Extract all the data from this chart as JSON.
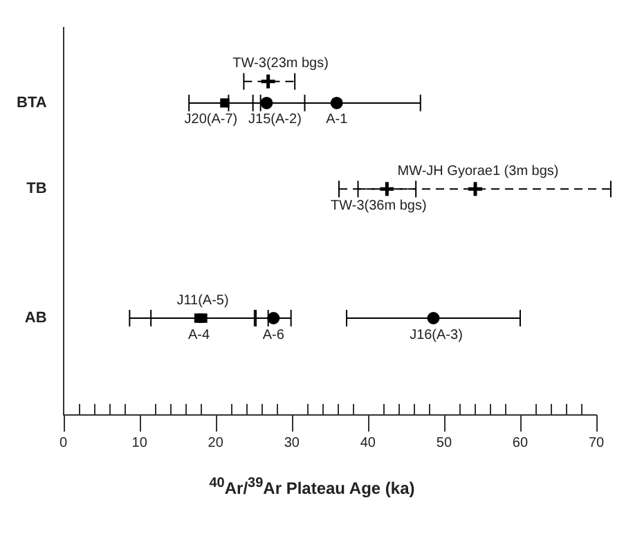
{
  "chart_data": {
    "type": "scatter",
    "orientation": "horizontal",
    "xlabel": "$^{40}$Ar/$^{39}$Ar Plateau Age (ka)",
    "categories": [
      null,
      null,
      null,
      "BTA",
      null,
      null,
      null,
      "TB",
      null,
      null,
      null,
      null,
      null,
      "AB",
      null,
      null,
      null,
      null
    ],
    "xlim": [
      0,
      70
    ],
    "xticks": [
      0,
      {
        "value": 2,
        "label": null
      },
      {
        "value": 4,
        "label": null
      },
      {
        "value": 6,
        "label": null
      },
      {
        "value": 8,
        "label": null
      },
      10,
      {
        "value": 12,
        "label": null
      },
      {
        "value": 14,
        "label": null
      },
      {
        "value": 16,
        "label": null
      },
      {
        "value": 18,
        "label": null
      },
      20,
      {
        "value": 22,
        "label": null
      },
      {
        "value": 24,
        "label": null
      },
      {
        "value": 26,
        "label": null
      },
      {
        "value": 28,
        "label": null
      },
      30,
      {
        "value": 32,
        "label": null
      },
      {
        "value": 34,
        "label": null
      },
      {
        "value": 36,
        "label": null
      },
      {
        "value": 38,
        "label": null
      },
      40,
      {
        "value": 42,
        "label": null
      },
      {
        "value": 44,
        "label": null
      },
      {
        "value": 46,
        "label": null
      },
      {
        "value": 48,
        "label": null
      },
      50,
      {
        "value": 52,
        "label": null
      },
      {
        "value": 54,
        "label": null
      },
      {
        "value": 56,
        "label": null
      },
      {
        "value": 58,
        "label": null
      },
      60,
      {
        "value": 62,
        "label": null
      },
      {
        "value": 64,
        "label": null
      },
      {
        "value": 66,
        "label": null
      },
      {
        "value": 68,
        "label": null
      },
      70
    ],
    "grid": false,
    "legend": false,
    "series": [
      {
        "name": "J20(A-7)",
        "color": "#000000",
        "marker": "square",
        "line_style": "solid",
        "values": [
          null,
          null,
          null,
          21.2,
          null,
          null,
          null,
          null,
          null,
          null,
          null,
          null,
          null,
          null,
          null,
          null,
          null,
          null
        ],
        "errors": [
          null,
          null,
          null,
          [
            16.5,
            25.9
          ],
          null,
          null,
          null,
          null,
          null,
          null,
          null,
          null,
          null,
          null,
          null,
          null,
          null,
          null
        ]
      },
      {
        "name": "J15(A-2)",
        "color": "#000000",
        "marker": "circle",
        "line_style": "solid",
        "values": [
          null,
          null,
          null,
          26.7,
          null,
          null,
          null,
          null,
          null,
          null,
          null,
          null,
          null,
          null,
          null,
          null,
          null,
          null
        ],
        "errors": [
          null,
          null,
          null,
          [
            21.7,
            31.7
          ],
          null,
          null,
          null,
          null,
          null,
          null,
          null,
          null,
          null,
          null,
          null,
          null,
          null,
          null
        ]
      },
      {
        "name": "A-1",
        "color": "#000000",
        "marker": "circle",
        "line_style": "solid",
        "values": [
          null,
          null,
          null,
          35.9,
          null,
          null,
          null,
          null,
          null,
          null,
          null,
          null,
          null,
          null,
          null,
          null,
          null,
          null
        ],
        "errors": [
          null,
          null,
          null,
          [
            24.9,
            46.9
          ],
          null,
          null,
          null,
          null,
          null,
          null,
          null,
          null,
          null,
          null,
          null,
          null,
          null,
          null
        ]
      },
      {
        "name": "TW-3(23m bgs)",
        "color": "#000000",
        "marker": "cross",
        "line_style": "dashed",
        "values": [
          null,
          null,
          26.9,
          null,
          null,
          null,
          null,
          null,
          null,
          null,
          null,
          null,
          null,
          null,
          null,
          null,
          null,
          null
        ],
        "errors": [
          null,
          null,
          [
            23.7,
            30.4
          ],
          null,
          null,
          null,
          null,
          null,
          null,
          null,
          null,
          null,
          null,
          null,
          null,
          null,
          null,
          null
        ]
      },
      {
        "name": "TW-3(36m bgs)",
        "color": "#000000",
        "marker": "cross",
        "line_style": "dashed",
        "values": [
          null,
          null,
          null,
          null,
          null,
          null,
          null,
          42.5,
          null,
          null,
          null,
          null,
          null,
          null,
          null,
          null,
          null,
          null
        ],
        "errors": [
          null,
          null,
          null,
          null,
          null,
          null,
          null,
          [
            38.7,
            46.3
          ],
          null,
          null,
          null,
          null,
          null,
          null,
          null,
          null,
          null,
          null
        ]
      },
      {
        "name": "MW-JH Gyorae1 (3m bgs)",
        "color": "#000000",
        "marker": "cross",
        "line_style": "dashed",
        "values": [
          null,
          null,
          null,
          null,
          null,
          null,
          null,
          54.1,
          null,
          null,
          null,
          null,
          null,
          null,
          null,
          null,
          null,
          null
        ],
        "errors": [
          null,
          null,
          null,
          null,
          null,
          null,
          null,
          [
            36.2,
            71.9
          ],
          null,
          null,
          null,
          null,
          null,
          null,
          null,
          null,
          null,
          null
        ]
      },
      {
        "name": "A-4",
        "color": "#000000",
        "marker": "square",
        "line_style": "solid",
        "values": [
          null,
          null,
          null,
          null,
          null,
          null,
          null,
          null,
          null,
          null,
          null,
          null,
          null,
          17.8,
          null,
          null,
          null,
          null
        ],
        "errors": [
          null,
          null,
          null,
          null,
          null,
          null,
          null,
          null,
          null,
          null,
          null,
          null,
          null,
          [
            8.7,
            26.9
          ],
          null,
          null,
          null,
          null
        ]
      },
      {
        "name": "J11(A-5)",
        "color": "#000000",
        "marker": "square",
        "line_style": "solid",
        "values": [
          null,
          null,
          null,
          null,
          null,
          null,
          null,
          null,
          null,
          null,
          null,
          null,
          null,
          18.3,
          null,
          null,
          null,
          null
        ],
        "errors": [
          null,
          null,
          null,
          null,
          null,
          null,
          null,
          null,
          null,
          null,
          null,
          null,
          null,
          [
            11.5,
            25.1
          ],
          null,
          null,
          null,
          null
        ]
      },
      {
        "name": "A-6",
        "color": "#000000",
        "marker": "circle",
        "line_style": "solid",
        "values": [
          null,
          null,
          null,
          null,
          null,
          null,
          null,
          null,
          null,
          null,
          null,
          null,
          null,
          27.6,
          null,
          null,
          null,
          null
        ],
        "errors": [
          null,
          null,
          null,
          null,
          null,
          null,
          null,
          null,
          null,
          null,
          null,
          null,
          null,
          [
            25.3,
            29.9
          ],
          null,
          null,
          null,
          null
        ]
      },
      {
        "name": "J16(A-3)",
        "color": "#000000",
        "marker": "circle",
        "line_style": "solid",
        "values": [
          null,
          null,
          null,
          null,
          null,
          null,
          null,
          null,
          null,
          null,
          null,
          null,
          null,
          48.6,
          null,
          null,
          null,
          null
        ],
        "errors": [
          null,
          null,
          null,
          null,
          null,
          null,
          null,
          null,
          null,
          null,
          null,
          null,
          null,
          [
            37.2,
            60.0
          ],
          null,
          null,
          null,
          null
        ]
      }
    ]
  }
}
